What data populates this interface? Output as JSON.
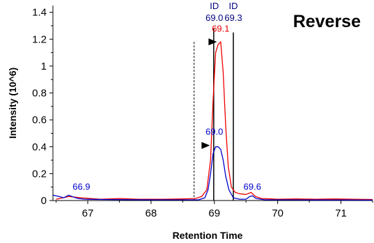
{
  "chart_data": {
    "type": "line",
    "title": "Reverse",
    "xlabel": "Retention Time",
    "ylabel": "Intensity (10^6)",
    "xlim": [
      66.45,
      71.5
    ],
    "ylim": [
      0,
      1.45
    ],
    "xticks": [
      "67",
      "68",
      "69",
      "70",
      "71"
    ],
    "yticks": [
      "0",
      "0.2",
      "0.4",
      "0.6",
      "0.8",
      "1",
      "1.2",
      "1.4"
    ],
    "series": [
      {
        "color": "#ee0000",
        "points": [
          [
            66.5,
            0.01
          ],
          [
            66.7,
            0.03
          ],
          [
            66.9,
            0.02
          ],
          [
            67.2,
            0.01
          ],
          [
            67.5,
            0.015
          ],
          [
            67.8,
            0.01
          ],
          [
            68.2,
            0.01
          ],
          [
            68.5,
            0.012
          ],
          [
            68.7,
            0.015
          ],
          [
            68.8,
            0.03
          ],
          [
            68.88,
            0.08
          ],
          [
            68.94,
            0.3
          ],
          [
            68.98,
            0.75
          ],
          [
            69.02,
            1.1
          ],
          [
            69.06,
            1.16
          ],
          [
            69.1,
            1.18
          ],
          [
            69.14,
            0.95
          ],
          [
            69.18,
            0.55
          ],
          [
            69.22,
            0.25
          ],
          [
            69.27,
            0.1
          ],
          [
            69.33,
            0.06
          ],
          [
            69.4,
            0.05
          ],
          [
            69.5,
            0.045
          ],
          [
            69.58,
            0.06
          ],
          [
            69.65,
            0.03
          ],
          [
            69.75,
            0.015
          ],
          [
            70.0,
            0.01
          ],
          [
            70.3,
            0.012
          ],
          [
            70.6,
            0.01
          ],
          [
            70.9,
            0.012
          ],
          [
            71.2,
            0.01
          ],
          [
            71.5,
            0.008
          ]
        ]
      },
      {
        "color": "#0000cc",
        "points": [
          [
            66.45,
            0.04
          ],
          [
            66.55,
            0.03
          ],
          [
            66.62,
            0.02
          ],
          [
            66.7,
            0.04
          ],
          [
            66.78,
            0.025
          ],
          [
            66.85,
            0.015
          ],
          [
            66.95,
            0.01
          ],
          [
            67.2,
            0.008
          ],
          [
            67.6,
            0.006
          ],
          [
            68.0,
            0.005
          ],
          [
            68.4,
            0.005
          ],
          [
            68.75,
            0.005
          ],
          [
            68.85,
            0.02
          ],
          [
            68.9,
            0.08
          ],
          [
            68.94,
            0.2
          ],
          [
            68.98,
            0.35
          ],
          [
            69.02,
            0.4
          ],
          [
            69.06,
            0.4
          ],
          [
            69.1,
            0.38
          ],
          [
            69.14,
            0.3
          ],
          [
            69.18,
            0.18
          ],
          [
            69.23,
            0.08
          ],
          [
            69.3,
            0.02
          ],
          [
            69.4,
            0.01
          ],
          [
            69.5,
            0.01
          ],
          [
            69.56,
            0.03
          ],
          [
            69.6,
            0.035
          ],
          [
            69.66,
            0.015
          ],
          [
            69.8,
            0.005
          ],
          [
            70.2,
            0.005
          ],
          [
            70.6,
            0.004
          ],
          [
            71.0,
            0.004
          ],
          [
            71.5,
            0.003
          ]
        ]
      }
    ],
    "annotations": [
      {
        "text": "ID",
        "x": 69.0,
        "y": 1.425,
        "color": "#000080"
      },
      {
        "text": "69.0",
        "x": 69.0,
        "y": 1.335,
        "color": "#000080"
      },
      {
        "text": "ID",
        "x": 69.3,
        "y": 1.425,
        "color": "#000080"
      },
      {
        "text": "69.3",
        "x": 69.3,
        "y": 1.335,
        "color": "#000080"
      },
      {
        "text": "69.1",
        "x": 69.1,
        "y": 1.255,
        "color": "#ee0000"
      },
      {
        "text": "69.0",
        "x": 69.0,
        "y": 0.49,
        "color": "#0000cc"
      },
      {
        "text": "66.9",
        "x": 66.9,
        "y": 0.08,
        "color": "#0000cc"
      },
      {
        "text": "69.6",
        "x": 69.6,
        "y": 0.08,
        "color": "#0000cc"
      }
    ],
    "vertical_lines": [
      {
        "x": 68.68,
        "y_top": 1.18,
        "style": "dashed"
      },
      {
        "x": 68.99,
        "y_top": 1.28,
        "style": "solid"
      },
      {
        "x": 69.3,
        "y_top": 1.25,
        "style": "solid"
      }
    ],
    "markers": [
      {
        "x": 69.04,
        "y": 1.18,
        "shape": "right-triangle"
      },
      {
        "x": 68.93,
        "y": 0.41,
        "shape": "right-triangle"
      }
    ],
    "grid": false,
    "legend": "none"
  }
}
